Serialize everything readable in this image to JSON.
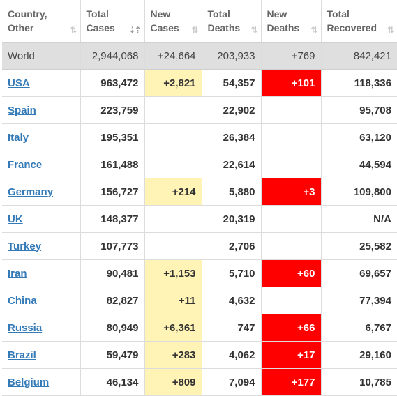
{
  "table": {
    "headers": [
      {
        "line1": "Country,",
        "line2": "Other",
        "sort": "⇅",
        "active": false
      },
      {
        "line1": "Total",
        "line2": "Cases",
        "sort": "⇣⇡",
        "active": true
      },
      {
        "line1": "New",
        "line2": "Cases",
        "sort": "⇅",
        "active": false
      },
      {
        "line1": "Total",
        "line2": "Deaths",
        "sort": "⇅",
        "active": false
      },
      {
        "line1": "New",
        "line2": "Deaths",
        "sort": "⇅",
        "active": false
      },
      {
        "line1": "Total",
        "line2": "Recovered",
        "sort": "⇅",
        "active": false
      }
    ],
    "world": {
      "country": "World",
      "total_cases": "2,944,068",
      "new_cases": "+24,664",
      "total_deaths": "203,933",
      "new_deaths": "+769",
      "total_recovered": "842,421"
    },
    "rows": [
      {
        "country": "USA",
        "total_cases": "963,472",
        "new_cases": "+2,821",
        "total_deaths": "54,357",
        "new_deaths": "+101",
        "total_recovered": "118,336"
      },
      {
        "country": "Spain",
        "total_cases": "223,759",
        "new_cases": "",
        "total_deaths": "22,902",
        "new_deaths": "",
        "total_recovered": "95,708"
      },
      {
        "country": "Italy",
        "total_cases": "195,351",
        "new_cases": "",
        "total_deaths": "26,384",
        "new_deaths": "",
        "total_recovered": "63,120"
      },
      {
        "country": "France",
        "total_cases": "161,488",
        "new_cases": "",
        "total_deaths": "22,614",
        "new_deaths": "",
        "total_recovered": "44,594"
      },
      {
        "country": "Germany",
        "total_cases": "156,727",
        "new_cases": "+214",
        "total_deaths": "5,880",
        "new_deaths": "+3",
        "total_recovered": "109,800"
      },
      {
        "country": "UK",
        "total_cases": "148,377",
        "new_cases": "",
        "total_deaths": "20,319",
        "new_deaths": "",
        "total_recovered": "N/A"
      },
      {
        "country": "Turkey",
        "total_cases": "107,773",
        "new_cases": "",
        "total_deaths": "2,706",
        "new_deaths": "",
        "total_recovered": "25,582"
      },
      {
        "country": "Iran",
        "total_cases": "90,481",
        "new_cases": "+1,153",
        "total_deaths": "5,710",
        "new_deaths": "+60",
        "total_recovered": "69,657"
      },
      {
        "country": "China",
        "total_cases": "82,827",
        "new_cases": "+11",
        "total_deaths": "4,632",
        "new_deaths": "",
        "total_recovered": "77,394"
      },
      {
        "country": "Russia",
        "total_cases": "80,949",
        "new_cases": "+6,361",
        "total_deaths": "747",
        "new_deaths": "+66",
        "total_recovered": "6,767"
      },
      {
        "country": "Brazil",
        "total_cases": "59,479",
        "new_cases": "+283",
        "total_deaths": "4,062",
        "new_deaths": "+17",
        "total_recovered": "29,160"
      },
      {
        "country": "Belgium",
        "total_cases": "46,134",
        "new_cases": "+809",
        "total_deaths": "7,094",
        "new_deaths": "+177",
        "total_recovered": "10,785"
      }
    ]
  },
  "colors": {
    "new_cases_highlight": "#fff3b6",
    "new_deaths_highlight": "#ff0000",
    "world_row_bg": "#dfdfdf",
    "country_link": "#337ab7"
  }
}
